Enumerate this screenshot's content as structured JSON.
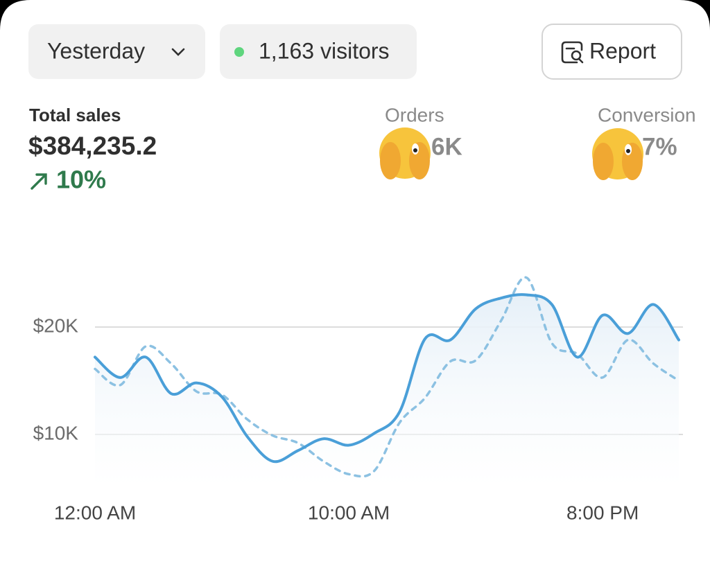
{
  "toolbar": {
    "period": "Yesterday",
    "visitors": "1,163 visitors",
    "report": "Report"
  },
  "metrics": [
    {
      "label": "Total sales",
      "value": "$384,235.2",
      "change": "10%"
    },
    {
      "label": "Orders",
      "value": "6K"
    },
    {
      "label": "Conversion",
      "value": "7%"
    }
  ],
  "chart_data": {
    "type": "line",
    "categories": [
      "12:00 AM",
      null,
      null,
      null,
      null,
      null,
      null,
      null,
      null,
      null,
      "10:00 AM",
      null,
      null,
      null,
      null,
      null,
      null,
      null,
      null,
      null,
      "8:00 PM",
      null,
      null,
      null
    ],
    "series": [
      {
        "color": "#4a9fd8",
        "style": "solid",
        "area": true,
        "values": [
          17200,
          15300,
          17200,
          13800,
          14800,
          13500,
          9800,
          7500,
          8500,
          9600,
          9000,
          10100,
          12100,
          18900,
          18800,
          21700,
          22700,
          23000,
          22100,
          17200,
          21100,
          19400,
          22100,
          18800
        ]
      },
      {
        "color": "#8cc1e2",
        "style": "dashed",
        "area": false,
        "values": [
          16100,
          14600,
          18200,
          16600,
          14000,
          13700,
          11400,
          9900,
          9200,
          7500,
          6300,
          6600,
          11100,
          13400,
          16800,
          16900,
          20600,
          24600,
          18500,
          17500,
          15300,
          18800,
          16600,
          15000
        ]
      }
    ],
    "ylim": [
      5000,
      25000
    ],
    "yticks": [
      {
        "value": 10000,
        "label": "$10K"
      },
      {
        "value": 20000,
        "label": "$20K"
      }
    ],
    "grid": true
  }
}
